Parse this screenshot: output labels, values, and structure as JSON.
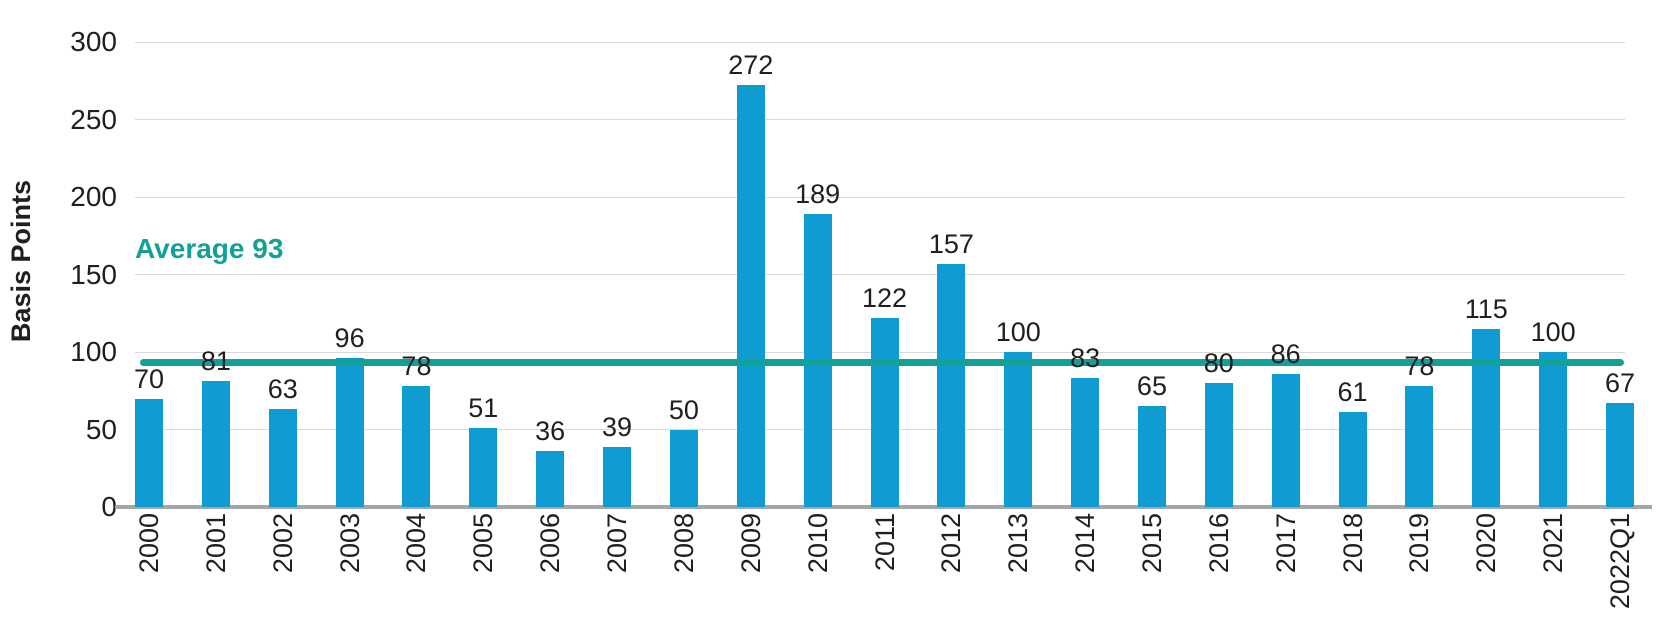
{
  "chart_data": {
    "type": "bar",
    "ylabel": "Basis Points",
    "xlabel": "",
    "categories": [
      "2000",
      "2001",
      "2002",
      "2003",
      "2004",
      "2005",
      "2006",
      "2007",
      "2008",
      "2009",
      "2010",
      "2011",
      "2012",
      "2013",
      "2014",
      "2015",
      "2016",
      "2017",
      "2018",
      "2019",
      "2020",
      "2021",
      "2022Q1"
    ],
    "values": [
      70,
      81,
      63,
      96,
      78,
      51,
      36,
      39,
      50,
      272,
      189,
      122,
      157,
      100,
      83,
      65,
      80,
      86,
      61,
      78,
      115,
      100,
      67
    ],
    "average_line": {
      "value": 93,
      "label": "Average 93"
    },
    "ylim": [
      0,
      300
    ],
    "yticks": [
      0,
      50,
      100,
      150,
      200,
      250,
      300
    ],
    "grid": "horizontal",
    "legend_position": "none",
    "value_labels": "above-bars",
    "x_label_rotation_deg": 90,
    "colors": {
      "bar": "#0e9cd2",
      "average": "#13a097",
      "gridline": "#d9d9d9",
      "axis_line": "#a6a6a6",
      "text": "#1f1f1f",
      "background": "#ffffff"
    }
  }
}
